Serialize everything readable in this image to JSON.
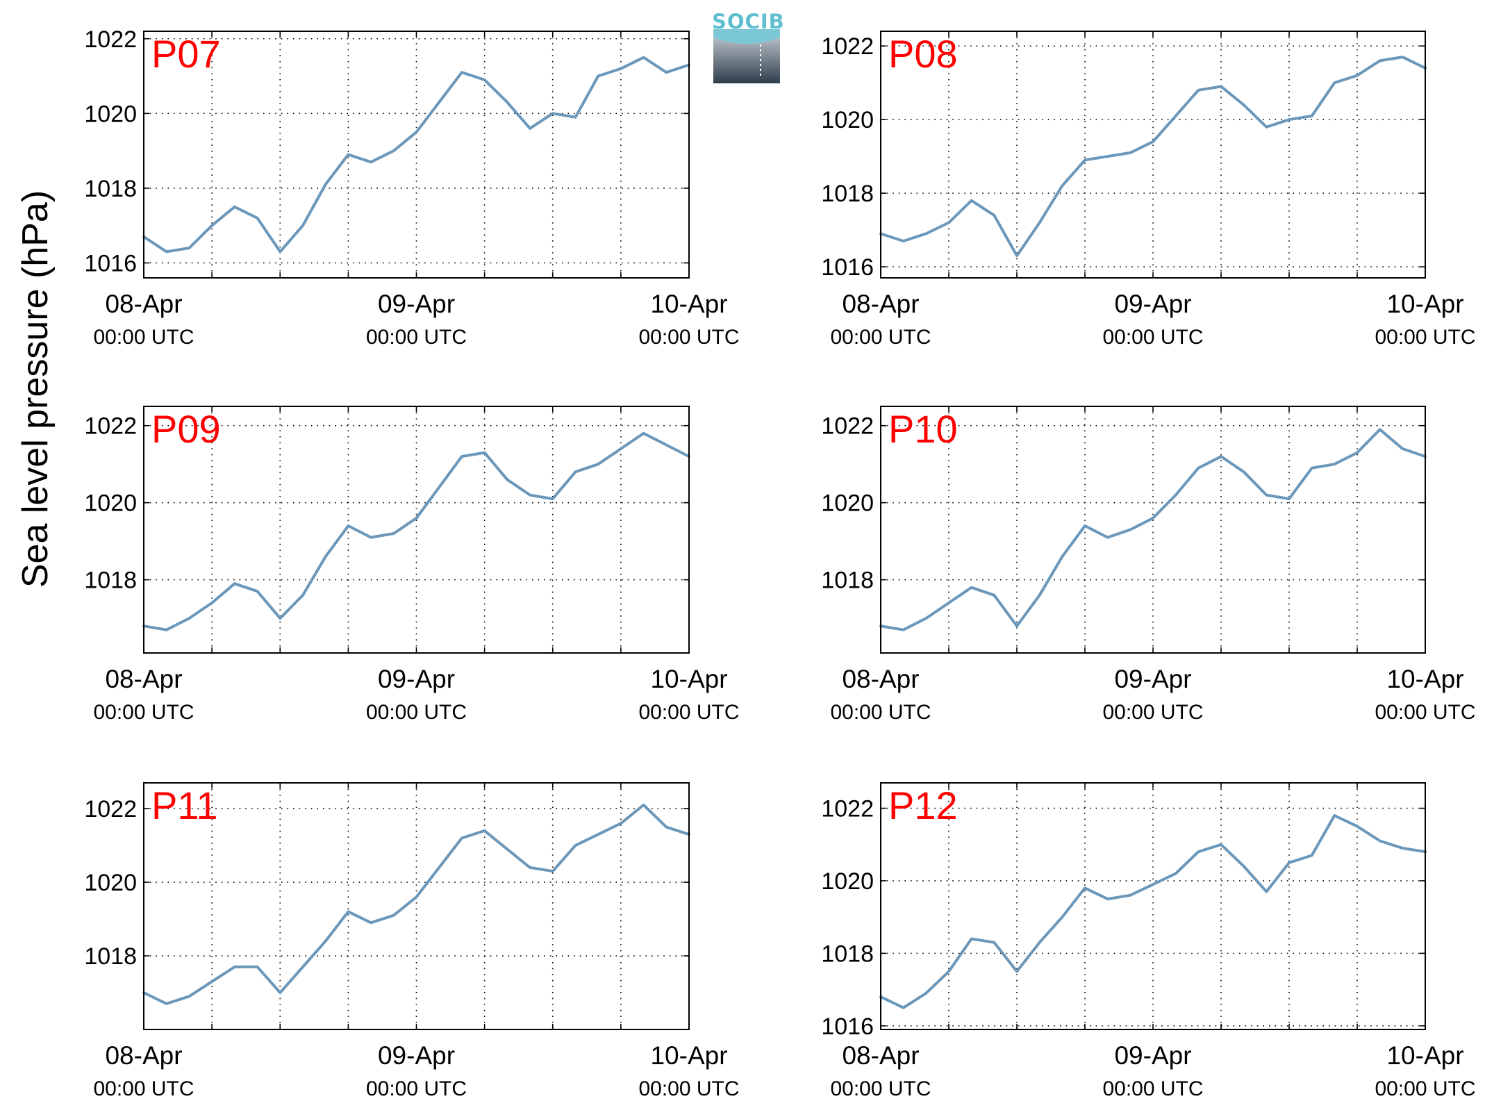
{
  "chart_data": {
    "type": "line",
    "ylabel": "Sea level pressure (hPa)",
    "color": "#6a97ba",
    "label_color": "#ff0000",
    "grid": true,
    "x_ticks": [
      {
        "date": "08-Apr",
        "time": "00:00 UTC"
      },
      {
        "date": "09-Apr",
        "time": "00:00 UTC"
      },
      {
        "date": "10-Apr",
        "time": "00:00 UTC"
      }
    ],
    "x_range_hours": [
      0,
      48
    ],
    "panels": [
      {
        "label": "P07",
        "ylim": [
          1015.6,
          1022.2
        ],
        "yticks": [
          "1016",
          "1018",
          "1020",
          "1022"
        ],
        "series": {
          "hours": [
            0,
            2,
            4,
            6,
            8,
            10,
            12,
            14,
            16,
            18,
            20,
            22,
            24,
            26,
            28,
            30,
            32,
            34,
            36,
            38,
            40,
            42,
            44,
            46,
            48
          ],
          "values": [
            1016.7,
            1016.3,
            1016.4,
            1017.0,
            1017.5,
            1017.2,
            1016.3,
            1017.0,
            1018.1,
            1018.9,
            1018.7,
            1019.0,
            1019.5,
            1020.3,
            1021.1,
            1020.9,
            1020.3,
            1019.6,
            1020.0,
            1019.9,
            1021.0,
            1021.2,
            1021.5,
            1021.1,
            1021.3
          ]
        }
      },
      {
        "label": "P08",
        "ylim": [
          1015.7,
          1022.4
        ],
        "yticks": [
          "1016",
          "1018",
          "1020",
          "1022"
        ],
        "series": {
          "hours": [
            0,
            2,
            4,
            6,
            8,
            10,
            12,
            14,
            16,
            18,
            20,
            22,
            24,
            26,
            28,
            30,
            32,
            34,
            36,
            38,
            40,
            42,
            44,
            46,
            48
          ],
          "values": [
            1016.9,
            1016.7,
            1016.9,
            1017.2,
            1017.8,
            1017.4,
            1016.3,
            1017.2,
            1018.2,
            1018.9,
            1019.0,
            1019.1,
            1019.4,
            1020.1,
            1020.8,
            1020.9,
            1020.4,
            1019.8,
            1020.0,
            1020.1,
            1021.0,
            1021.2,
            1021.6,
            1021.7,
            1021.4
          ]
        }
      },
      {
        "label": "P09",
        "ylim": [
          1016.1,
          1022.5
        ],
        "yticks": [
          "1018",
          "1020",
          "1022"
        ],
        "series": {
          "hours": [
            0,
            2,
            4,
            6,
            8,
            10,
            12,
            14,
            16,
            18,
            20,
            22,
            24,
            26,
            28,
            30,
            32,
            34,
            36,
            38,
            40,
            42,
            44,
            46,
            48
          ],
          "values": [
            1016.8,
            1016.7,
            1017.0,
            1017.4,
            1017.9,
            1017.7,
            1017.0,
            1017.6,
            1018.6,
            1019.4,
            1019.1,
            1019.2,
            1019.6,
            1020.4,
            1021.2,
            1021.3,
            1020.6,
            1020.2,
            1020.1,
            1020.8,
            1021.0,
            1021.4,
            1021.8,
            1021.5,
            1021.2
          ]
        }
      },
      {
        "label": "P10",
        "ylim": [
          1016.1,
          1022.5
        ],
        "yticks": [
          "1018",
          "1020",
          "1022"
        ],
        "series": {
          "hours": [
            0,
            2,
            4,
            6,
            8,
            10,
            12,
            14,
            16,
            18,
            20,
            22,
            24,
            26,
            28,
            30,
            32,
            34,
            36,
            38,
            40,
            42,
            44,
            46,
            48
          ],
          "values": [
            1016.8,
            1016.7,
            1017.0,
            1017.4,
            1017.8,
            1017.6,
            1016.8,
            1017.6,
            1018.6,
            1019.4,
            1019.1,
            1019.3,
            1019.6,
            1020.2,
            1020.9,
            1021.2,
            1020.8,
            1020.2,
            1020.1,
            1020.9,
            1021.0,
            1021.3,
            1021.9,
            1021.4,
            1021.2
          ]
        }
      },
      {
        "label": "P11",
        "ylim": [
          1016.0,
          1022.7
        ],
        "yticks": [
          "1018",
          "1020",
          "1022"
        ],
        "series": {
          "hours": [
            0,
            2,
            4,
            6,
            8,
            10,
            12,
            14,
            16,
            18,
            20,
            22,
            24,
            26,
            28,
            30,
            32,
            34,
            36,
            38,
            40,
            42,
            44,
            46,
            48
          ],
          "values": [
            1017.0,
            1016.7,
            1016.9,
            1017.3,
            1017.7,
            1017.7,
            1017.0,
            1017.7,
            1018.4,
            1019.2,
            1018.9,
            1019.1,
            1019.6,
            1020.4,
            1021.2,
            1021.4,
            1020.9,
            1020.4,
            1020.3,
            1021.0,
            1021.3,
            1021.6,
            1022.1,
            1021.5,
            1021.3
          ]
        }
      },
      {
        "label": "P12",
        "ylim": [
          1015.9,
          1022.7
        ],
        "yticks": [
          "1016",
          "1018",
          "1020",
          "1022"
        ],
        "series": {
          "hours": [
            0,
            2,
            4,
            6,
            8,
            10,
            12,
            14,
            16,
            18,
            20,
            22,
            24,
            26,
            28,
            30,
            32,
            34,
            36,
            38,
            40,
            42,
            44,
            46,
            48
          ],
          "values": [
            1016.8,
            1016.5,
            1016.9,
            1017.5,
            1018.4,
            1018.3,
            1017.5,
            1018.3,
            1019.0,
            1019.8,
            1019.5,
            1019.6,
            1019.9,
            1020.2,
            1020.8,
            1021.0,
            1020.4,
            1019.7,
            1020.5,
            1020.7,
            1021.8,
            1021.5,
            1021.1,
            1020.9,
            1020.8
          ]
        }
      }
    ]
  },
  "logo": {
    "text": "SOCIB"
  }
}
